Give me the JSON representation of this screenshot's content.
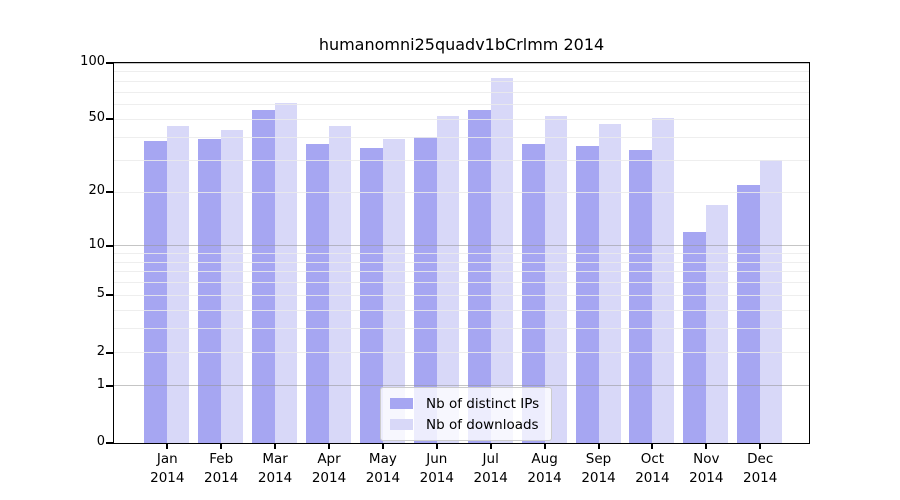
{
  "chart_data": {
    "type": "bar",
    "title": "humanomni25quadv1bCrlmm 2014",
    "year_label": "2014",
    "categories": [
      "Jan",
      "Feb",
      "Mar",
      "Apr",
      "May",
      "Jun",
      "Jul",
      "Aug",
      "Sep",
      "Oct",
      "Nov",
      "Dec"
    ],
    "series": [
      {
        "name": "Nb of distinct IPs",
        "color": "#a6a6f2",
        "values": [
          38,
          39,
          56,
          37,
          35,
          40,
          56,
          37,
          36,
          34,
          12,
          22
        ]
      },
      {
        "name": "Nb of downloads",
        "color": "#d8d8f8",
        "values": [
          46,
          44,
          61,
          46,
          39,
          52,
          83,
          52,
          47,
          51,
          17,
          30
        ]
      }
    ],
    "yticks": [
      0,
      1,
      2,
      5,
      10,
      20,
      50,
      100
    ],
    "ylim": [
      0,
      100
    ],
    "yscale": "log10(value+1)",
    "xlabel": "",
    "ylabel": "",
    "grid": "horizontal log gridlines; darker majors at 1, 10, 100; faint minors",
    "legend_position": "inside-bottom-center",
    "colors": {
      "axis": "#000000",
      "minor_gridline": "#ebebeb",
      "major_gridline": "#bbbbbb",
      "legend_border": "#cccccc",
      "background": "#ffffff"
    }
  }
}
